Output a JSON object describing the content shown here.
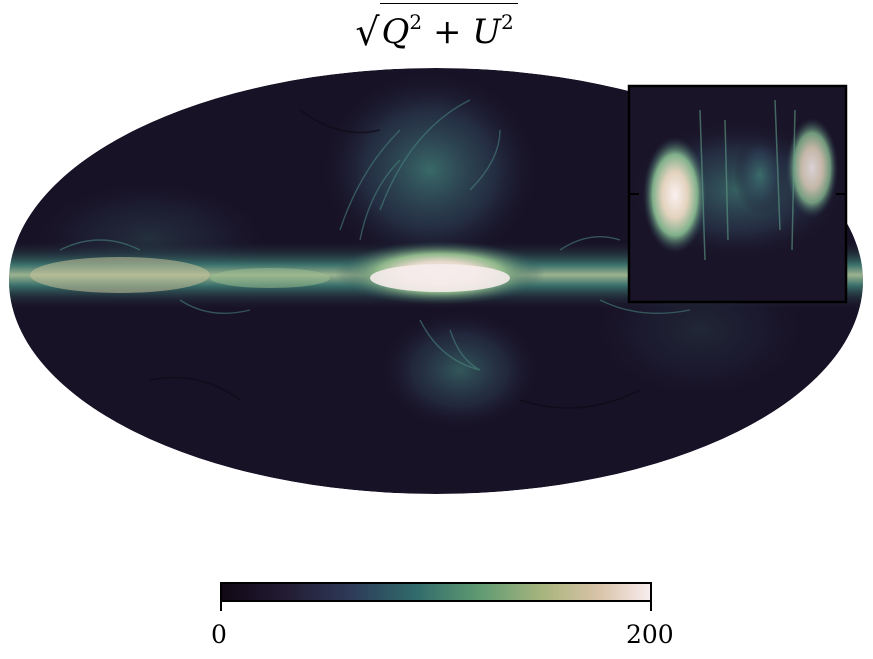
{
  "title": {
    "radical": "√",
    "q": "Q",
    "plus": "+",
    "u": "U",
    "exponent": "2"
  },
  "map": {
    "projection": "mollweide",
    "colormap": "cubehelix-dark-teal-to-pink",
    "colors": {
      "low": "#140c1c",
      "mid_low": "#2c2d4a",
      "mid": "#3f7a73",
      "mid_high": "#8fb07a",
      "high": "#c9b18a",
      "max": "#f6ecec"
    },
    "has_inset": true
  },
  "colorbar": {
    "min_label": "0",
    "max_label": "200",
    "range": [
      0,
      200
    ]
  }
}
